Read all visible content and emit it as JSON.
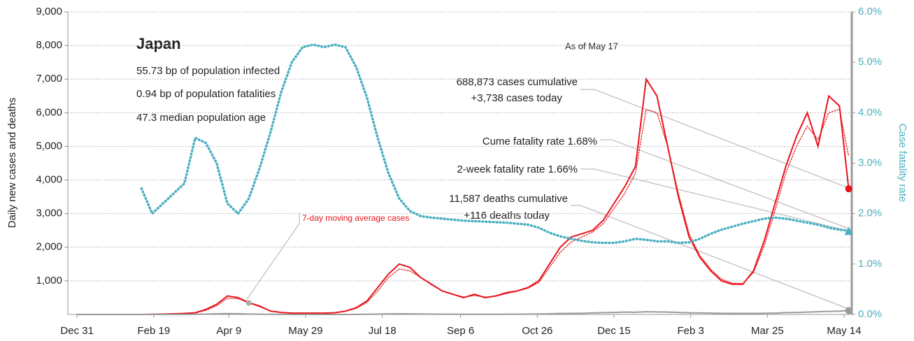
{
  "chart_data": {
    "type": "line",
    "title": "Japan",
    "annotations": {
      "stats": [
        "55.73 bp of population infected",
        "0.94 bp of population fatalities",
        "47.3 median population age"
      ],
      "as_of": "As of May 17",
      "cases_cum": "688,873 cases cumulative",
      "cases_today": "+3,738 cases today",
      "cume_rate": "Cume fatality rate 1.68%",
      "week_rate": "2-week fatality rate 1.66%",
      "deaths_cum": "11,587 deaths cumulative",
      "deaths_today": "+116 deaths today",
      "avg_label": "7-day moving average cases"
    },
    "ylabel": "Daily new cases and deaths",
    "y2label": "Case fatality rate",
    "x": [
      0,
      7,
      14,
      21,
      28,
      35,
      42,
      49,
      56,
      63,
      70,
      77,
      84,
      91,
      98,
      105,
      112,
      119,
      126,
      133,
      140,
      147,
      154,
      161,
      168,
      175,
      182,
      189,
      196,
      203,
      210,
      217,
      224,
      231,
      238,
      245,
      252,
      259,
      266,
      273,
      280,
      287,
      294,
      301,
      308,
      315,
      322,
      329,
      336,
      343,
      350,
      357,
      364,
      371,
      378,
      385,
      392,
      399,
      406,
      413,
      420,
      427,
      434,
      441,
      448,
      455,
      462,
      469,
      476,
      483,
      490,
      497,
      503
    ],
    "xlim": [
      -6,
      505
    ],
    "xticks": [
      {
        "value": 0,
        "label": "Dec 31"
      },
      {
        "value": 50,
        "label": "Feb 19"
      },
      {
        "value": 99,
        "label": "Apr 9"
      },
      {
        "value": 149,
        "label": "May 29"
      },
      {
        "value": 199,
        "label": "Jul 18"
      },
      {
        "value": 250,
        "label": "Sep 6"
      },
      {
        "value": 300,
        "label": "Oct 26"
      },
      {
        "value": 350,
        "label": "Dec 15"
      },
      {
        "value": 400,
        "label": "Feb 3"
      },
      {
        "value": 450,
        "label": "Mar 25"
      },
      {
        "value": 500,
        "label": "May 14"
      }
    ],
    "ylim": [
      0,
      9000
    ],
    "yticks": [
      {
        "value": 1000,
        "label": "1,000"
      },
      {
        "value": 2000,
        "label": "2,000"
      },
      {
        "value": 3000,
        "label": "3,000"
      },
      {
        "value": 4000,
        "label": "4,000"
      },
      {
        "value": 5000,
        "label": "5,000"
      },
      {
        "value": 6000,
        "label": "6,000"
      },
      {
        "value": 7000,
        "label": "7,000"
      },
      {
        "value": 8000,
        "label": "8,000"
      },
      {
        "value": 9000,
        "label": "9,000"
      }
    ],
    "y2lim": [
      0,
      6
    ],
    "y2ticks": [
      {
        "value": 0,
        "label": "0.0%"
      },
      {
        "value": 1,
        "label": "1.0%"
      },
      {
        "value": 2,
        "label": "2.0%"
      },
      {
        "value": 3,
        "label": "3.0%"
      },
      {
        "value": 4,
        "label": "4.0%"
      },
      {
        "value": 5,
        "label": "5.0%"
      },
      {
        "value": 6,
        "label": "6.0%"
      }
    ],
    "grid": true,
    "series": [
      {
        "name": "Daily new cases",
        "color": "#e8141c",
        "style": "solid",
        "values": [
          0,
          0,
          0,
          0,
          0,
          0,
          0,
          5,
          10,
          20,
          30,
          50,
          150,
          300,
          550,
          500,
          350,
          250,
          100,
          60,
          40,
          40,
          40,
          40,
          50,
          100,
          200,
          400,
          800,
          1200,
          1500,
          1400,
          1100,
          900,
          700,
          600,
          500,
          600,
          500,
          550,
          650,
          700,
          800,
          1000,
          1500,
          2000,
          2300,
          2400,
          2500,
          2800,
          3300,
          3800,
          4400,
          7000,
          6500,
          5000,
          3500,
          2300,
          1700,
          1300,
          1000,
          900,
          900,
          1300,
          2200,
          3300,
          4400,
          5300,
          6000,
          5000,
          6500,
          6200,
          3738
        ]
      },
      {
        "name": "7-day moving average cases",
        "color": "#e8141c",
        "style": "dotted",
        "values": [
          0,
          0,
          0,
          0,
          0,
          0,
          0,
          4,
          8,
          16,
          28,
          45,
          120,
          260,
          480,
          470,
          340,
          230,
          110,
          60,
          40,
          40,
          40,
          40,
          48,
          90,
          180,
          360,
          700,
          1100,
          1350,
          1300,
          1100,
          880,
          700,
          600,
          520,
          560,
          520,
          540,
          620,
          690,
          780,
          950,
          1400,
          1850,
          2150,
          2300,
          2450,
          2700,
          3150,
          3600,
          4200,
          6100,
          6000,
          5000,
          3600,
          2400,
          1750,
          1350,
          1050,
          930,
          920,
          1250,
          2050,
          3100,
          4200,
          5000,
          5600,
          5200,
          6000,
          6100,
          4700
        ]
      },
      {
        "name": "Case fatality rate",
        "color": "#4ab0c1",
        "style": "dotted",
        "axis": "y2",
        "values": [
          null,
          null,
          null,
          null,
          null,
          null,
          2.5,
          2.0,
          2.2,
          2.4,
          2.6,
          3.5,
          3.4,
          3.0,
          2.2,
          2.0,
          2.3,
          2.9,
          3.6,
          4.4,
          5.0,
          5.3,
          5.35,
          5.3,
          5.35,
          5.3,
          4.9,
          4.3,
          3.5,
          2.8,
          2.3,
          2.05,
          1.95,
          1.92,
          1.9,
          1.88,
          1.86,
          1.85,
          1.84,
          1.83,
          1.82,
          1.8,
          1.78,
          1.72,
          1.62,
          1.55,
          1.5,
          1.46,
          1.43,
          1.42,
          1.42,
          1.45,
          1.5,
          1.48,
          1.45,
          1.45,
          1.42,
          1.43,
          1.5,
          1.6,
          1.68,
          1.74,
          1.8,
          1.85,
          1.9,
          1.92,
          1.9,
          1.86,
          1.82,
          1.78,
          1.72,
          1.68,
          1.66
        ]
      },
      {
        "name": "Daily deaths",
        "color": "#9a9a9a",
        "style": "solid",
        "values": [
          0,
          0,
          0,
          0,
          0,
          0,
          0,
          0,
          1,
          2,
          3,
          5,
          10,
          18,
          25,
          20,
          12,
          8,
          4,
          2,
          1,
          1,
          1,
          1,
          1,
          1,
          2,
          5,
          10,
          15,
          20,
          18,
          14,
          10,
          8,
          7,
          6,
          6,
          6,
          6,
          7,
          8,
          10,
          14,
          20,
          28,
          30,
          35,
          45,
          55,
          60,
          70,
          65,
          80,
          75,
          70,
          60,
          50,
          45,
          40,
          35,
          30,
          30,
          32,
          35,
          40,
          55,
          60,
          70,
          80,
          90,
          100,
          116
        ]
      }
    ]
  }
}
